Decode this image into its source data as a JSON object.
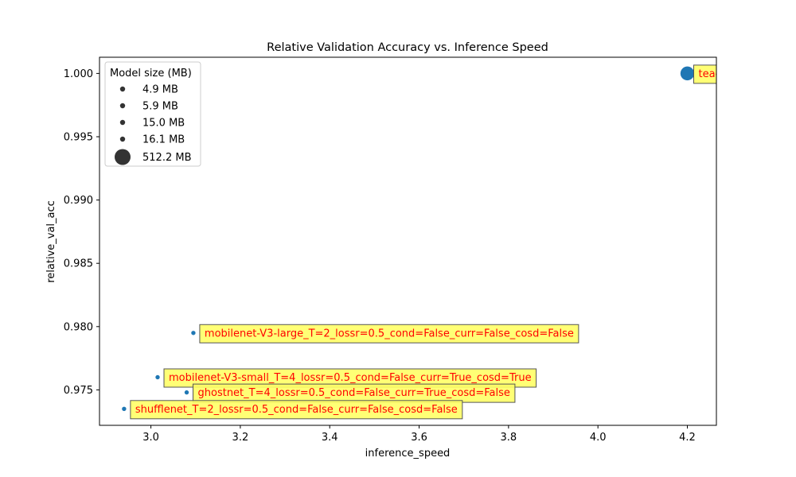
{
  "chart_data": {
    "type": "scatter",
    "title": "Relative Validation Accuracy vs. Inference Speed",
    "xlabel": "inference_speed",
    "ylabel": "relative_val_acc",
    "xlim": [
      2.885,
      4.265
    ],
    "ylim": [
      0.9722,
      1.00128
    ],
    "xticks": [
      3.0,
      3.2,
      3.4,
      3.6,
      3.8,
      4.0,
      4.2
    ],
    "xtick_labels": [
      "3.0",
      "3.2",
      "3.4",
      "3.6",
      "3.8",
      "4.0",
      "4.2"
    ],
    "yticks": [
      0.975,
      0.98,
      0.985,
      0.99,
      0.995,
      1.0
    ],
    "ytick_labels": [
      "0.975",
      "0.980",
      "0.985",
      "0.990",
      "0.995",
      "1.000"
    ],
    "grid": false,
    "marker_color": "#1f77b4",
    "annotation_text_color": "#ff0000",
    "annotation_box_color": "#ffff66",
    "legend": {
      "title": "Model size (MB)",
      "placement": "top-left",
      "entries": [
        "4.9 MB",
        "5.9 MB",
        "15.0 MB",
        "16.1 MB",
        "512.2 MB"
      ],
      "sizes_mb": [
        4.9,
        5.9,
        15.0,
        16.1,
        512.2
      ]
    },
    "points": [
      {
        "x": 4.2,
        "y": 1.0,
        "size_mb": 512.2,
        "label": "teacher_model_T="
      },
      {
        "x": 3.095,
        "y": 0.9795,
        "size_mb": 16.1,
        "label": "mobilenet-V3-large_T=2_lossr=0.5_cond=False_curr=False_cosd=False"
      },
      {
        "x": 3.015,
        "y": 0.976,
        "size_mb": 5.9,
        "label": "mobilenet-V3-small_T=4_lossr=0.5_cond=False_curr=True_cosd=True"
      },
      {
        "x": 3.08,
        "y": 0.9748,
        "size_mb": 15.0,
        "label": "ghostnet_T=4_lossr=0.5_cond=False_curr=True_cosd=False"
      },
      {
        "x": 2.94,
        "y": 0.9735,
        "size_mb": 4.9,
        "label": "shufflenet_T=2_lossr=0.5_cond=False_curr=False_cosd=False"
      }
    ]
  }
}
